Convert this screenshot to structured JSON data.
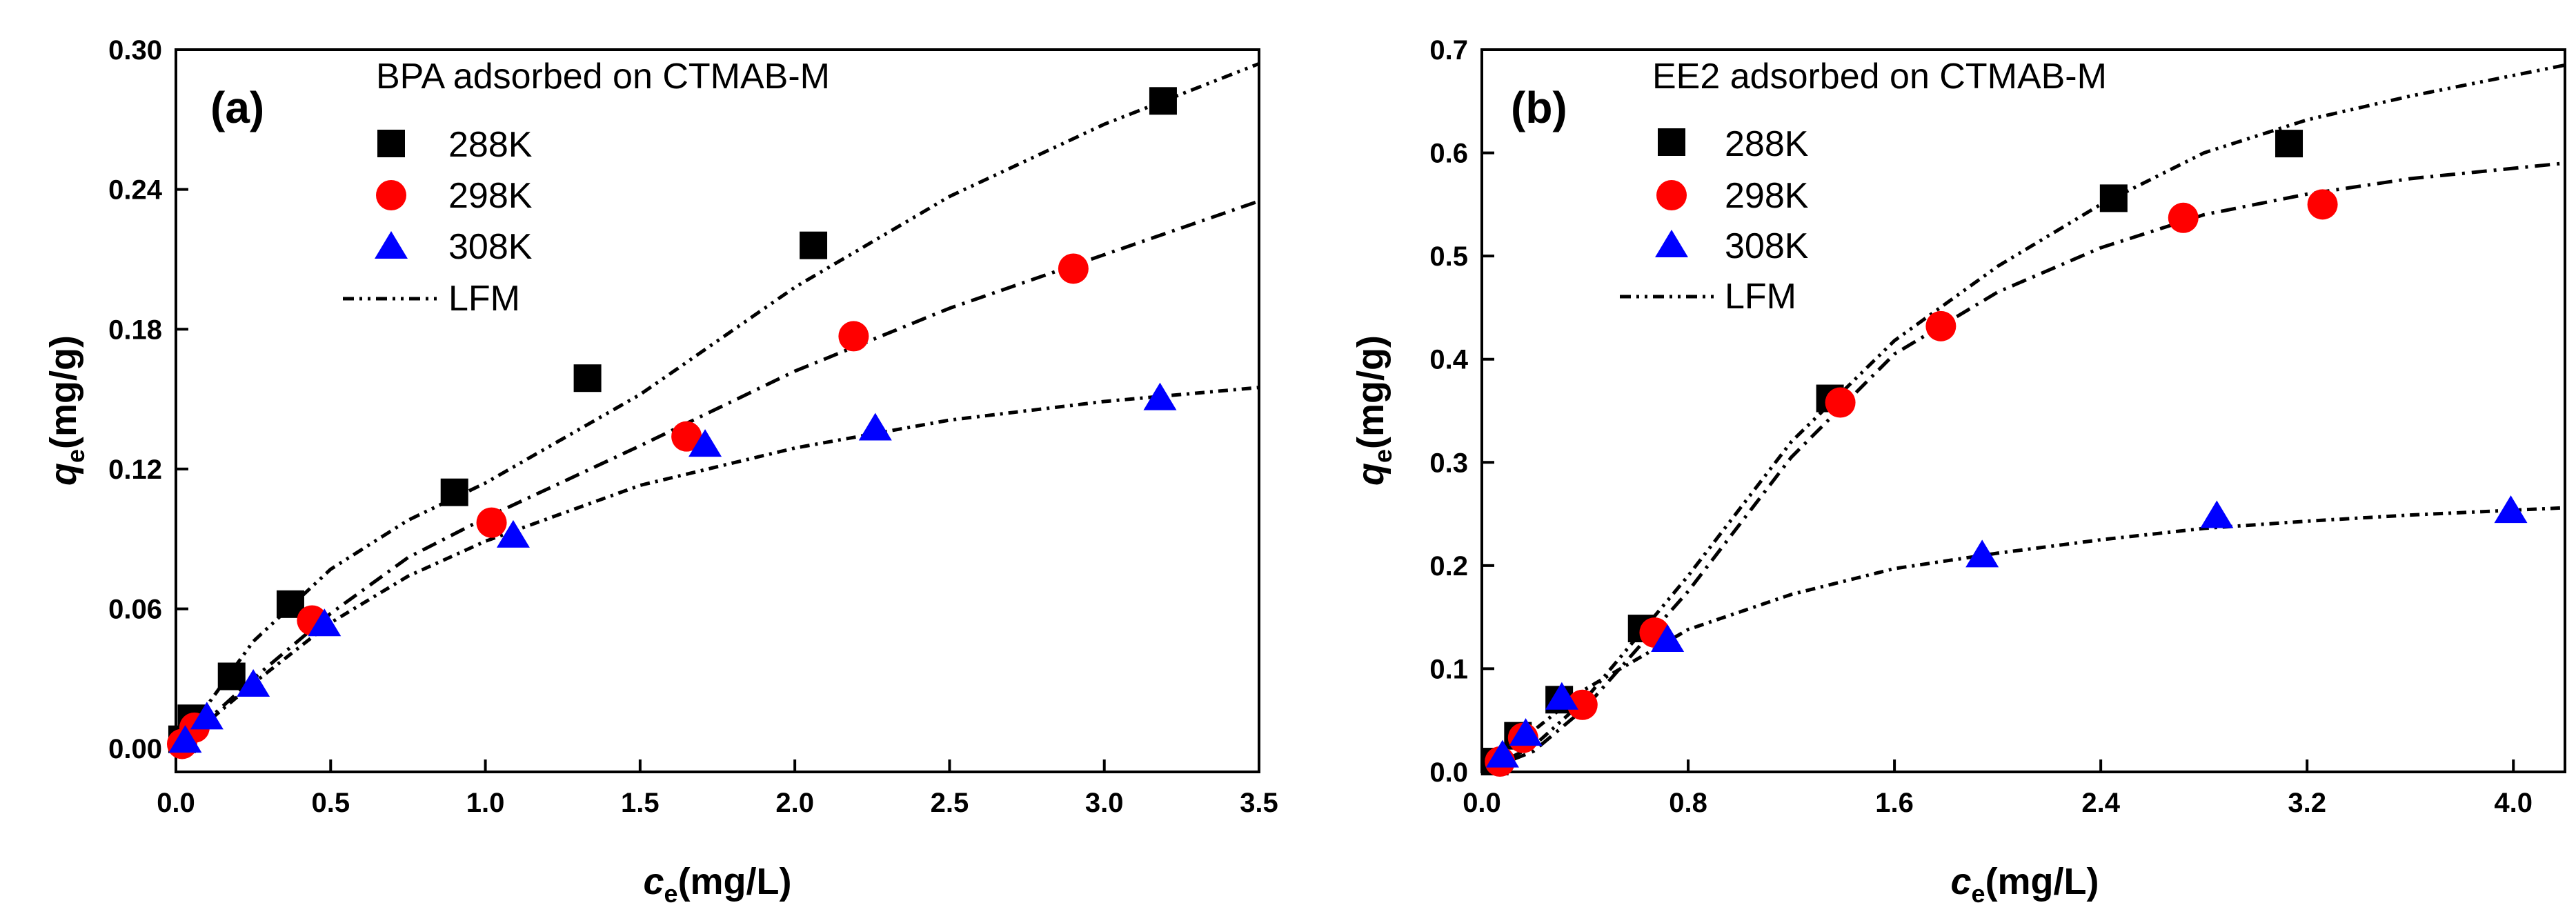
{
  "chart_data": [
    {
      "type": "scatter",
      "panel_label": "(a)",
      "title": "BPA adsorbed on CTMAB-M",
      "xlabel": {
        "var": "c",
        "sub": "e",
        "unit": "(mg/L)"
      },
      "ylabel": {
        "var": "q",
        "sub": "e",
        "unit": "(mg/g)"
      },
      "xlim": [
        0,
        3.5
      ],
      "ylim": [
        -0.01,
        0.3
      ],
      "xticks": [
        "0.0",
        "0.5",
        "1.0",
        "1.5",
        "2.0",
        "2.5",
        "3.0",
        "3.5"
      ],
      "yticks": [
        "0.00",
        "0.06",
        "0.12",
        "0.18",
        "0.24",
        "0.30"
      ],
      "xtick_values": [
        0,
        0.5,
        1.0,
        1.5,
        2.0,
        2.5,
        3.0,
        3.5
      ],
      "ytick_values": [
        0,
        0.06,
        0.12,
        0.18,
        0.24,
        0.3
      ],
      "legend_position": "top-left",
      "series": [
        {
          "name": "288K",
          "marker": "square",
          "color": "#000000",
          "x": [
            0.02,
            0.05,
            0.18,
            0.37,
            0.9,
            1.33,
            2.06,
            3.19
          ],
          "y": [
            0.004,
            0.013,
            0.031,
            0.062,
            0.11,
            0.159,
            0.216,
            0.278
          ]
        },
        {
          "name": "298K",
          "marker": "circle",
          "color": "#ff0000",
          "x": [
            0.02,
            0.06,
            0.44,
            1.02,
            1.65,
            2.19,
            2.9
          ],
          "y": [
            0.002,
            0.009,
            0.055,
            0.097,
            0.134,
            0.177,
            0.206
          ]
        },
        {
          "name": "308K",
          "marker": "triangle",
          "color": "#0000ff",
          "x": [
            0.03,
            0.1,
            0.25,
            0.48,
            1.09,
            1.71,
            2.26,
            3.18
          ],
          "y": [
            0.003,
            0.013,
            0.027,
            0.053,
            0.091,
            0.13,
            0.137,
            0.15
          ]
        },
        {
          "name": "LFM",
          "marker": "line",
          "color": "#000000",
          "fits": [
            {
              "x": [
                0,
                0.25,
                0.5,
                0.75,
                1.0,
                1.5,
                2.0,
                2.5,
                3.0,
                3.5
              ],
              "y": [
                0,
                0.046,
                0.077,
                0.098,
                0.114,
                0.152,
                0.198,
                0.237,
                0.268,
                0.294
              ]
            },
            {
              "x": [
                0,
                0.25,
                0.5,
                0.75,
                1.0,
                1.5,
                2.0,
                2.5,
                3.0,
                3.5
              ],
              "y": [
                0,
                0.03,
                0.058,
                0.082,
                0.099,
                0.13,
                0.162,
                0.189,
                0.212,
                0.235
              ]
            },
            {
              "x": [
                0,
                0.25,
                0.5,
                0.75,
                1.0,
                1.5,
                2.0,
                2.5,
                3.0,
                3.5
              ],
              "y": [
                0,
                0.028,
                0.054,
                0.074,
                0.089,
                0.113,
                0.129,
                0.141,
                0.149,
                0.155
              ]
            }
          ]
        }
      ]
    },
    {
      "type": "scatter",
      "panel_label": "(b)",
      "title": "EE2 adsorbed on CTMAB-M",
      "xlabel": {
        "var": "c",
        "sub": "e",
        "unit": "(mg/L)"
      },
      "ylabel": {
        "var": "q",
        "sub": "e",
        "unit": "(mg/g)"
      },
      "xlim": [
        0,
        4.2
      ],
      "ylim": [
        0,
        0.7
      ],
      "xticks": [
        "0.0",
        "0.8",
        "1.6",
        "2.4",
        "3.2",
        "4.0"
      ],
      "yticks": [
        "0.0",
        "0.1",
        "0.2",
        "0.3",
        "0.4",
        "0.5",
        "0.6",
        "0.7"
      ],
      "xtick_values": [
        0,
        0.8,
        1.6,
        2.4,
        3.2,
        4.0
      ],
      "ytick_values": [
        0,
        0.1,
        0.2,
        0.3,
        0.4,
        0.5,
        0.6,
        0.7
      ],
      "legend_position": "top-left",
      "series": [
        {
          "name": "288K",
          "marker": "square",
          "color": "#000000",
          "x": [
            0.05,
            0.14,
            0.3,
            0.62,
            1.35,
            2.45,
            3.13
          ],
          "y": [
            0.01,
            0.035,
            0.07,
            0.139,
            0.362,
            0.556,
            0.609
          ]
        },
        {
          "name": "298K",
          "marker": "circle",
          "color": "#ff0000",
          "x": [
            0.07,
            0.16,
            0.39,
            0.67,
            1.39,
            1.78,
            2.72,
            3.26
          ],
          "y": [
            0.01,
            0.033,
            0.065,
            0.135,
            0.358,
            0.432,
            0.537,
            0.55
          ]
        },
        {
          "name": "308K",
          "marker": "triangle",
          "color": "#0000ff",
          "x": [
            0.08,
            0.17,
            0.31,
            0.72,
            1.94,
            2.85,
            3.99
          ],
          "y": [
            0.015,
            0.036,
            0.071,
            0.127,
            0.209,
            0.247,
            0.252
          ]
        },
        {
          "name": "LFM",
          "marker": "line",
          "color": "#000000",
          "fits": [
            {
              "x": [
                0,
                0.2,
                0.4,
                0.8,
                1.2,
                1.6,
                2.0,
                2.4,
                2.8,
                3.2,
                3.6,
                4.2
              ],
              "y": [
                0,
                0.025,
                0.07,
                0.19,
                0.32,
                0.418,
                0.49,
                0.55,
                0.6,
                0.632,
                0.655,
                0.685
              ]
            },
            {
              "x": [
                0,
                0.2,
                0.4,
                0.8,
                1.2,
                1.6,
                2.0,
                2.4,
                2.8,
                3.2,
                3.6,
                4.2
              ],
              "y": [
                0,
                0.02,
                0.062,
                0.175,
                0.305,
                0.405,
                0.465,
                0.508,
                0.54,
                0.56,
                0.575,
                0.59
              ]
            },
            {
              "x": [
                0,
                0.2,
                0.4,
                0.8,
                1.2,
                1.6,
                2.0,
                2.4,
                2.8,
                3.2,
                3.6,
                4.2
              ],
              "y": [
                0,
                0.04,
                0.08,
                0.138,
                0.172,
                0.197,
                0.212,
                0.225,
                0.236,
                0.243,
                0.249,
                0.256
              ]
            }
          ]
        }
      ]
    }
  ]
}
